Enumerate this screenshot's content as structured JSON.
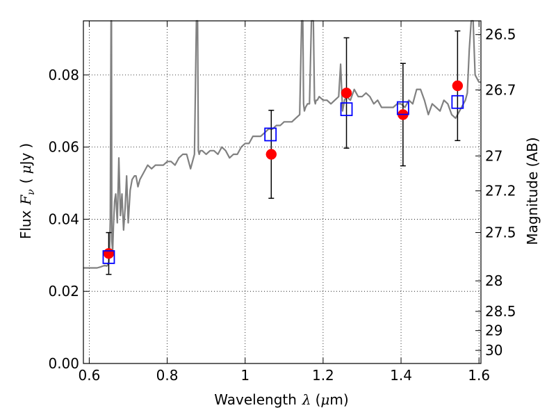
{
  "chart_data": {
    "type": "scatter",
    "xlabel_parts": {
      "prefix": "Wavelength",
      "symbol": "λ",
      "unit_open": "(",
      "unit_mu": "μ",
      "unit_rest": "m)"
    },
    "ylabel_parts": {
      "prefix": "Flux",
      "symbol": "F",
      "subscript": "ν",
      "unit_open": "(",
      "unit_mu": "μ",
      "unit_rest": "Jy",
      "unit_close": ")"
    },
    "y2label": "Magnitude (AB)",
    "xlim": [
      0.585,
      1.605
    ],
    "ylim": [
      0.0,
      0.095
    ],
    "xticks": [
      {
        "value": 0.6,
        "label": "0.6"
      },
      {
        "value": 0.8,
        "label": "0.8"
      },
      {
        "value": 1.0,
        "label": "1"
      },
      {
        "value": 1.2,
        "label": "1.2"
      },
      {
        "value": 1.4,
        "label": "1.4"
      },
      {
        "value": 1.6,
        "label": "1.6"
      }
    ],
    "yticks": [
      {
        "value": 0.0,
        "label": "0.00"
      },
      {
        "value": 0.02,
        "label": "0.02"
      },
      {
        "value": 0.04,
        "label": "0.04"
      },
      {
        "value": 0.06,
        "label": "0.06"
      },
      {
        "value": 0.08,
        "label": "0.08"
      }
    ],
    "y2ticks": [
      {
        "mag": 26.5,
        "label": "26.5"
      },
      {
        "mag": 26.7,
        "label": "26.7"
      },
      {
        "mag": 27.0,
        "label": "27"
      },
      {
        "mag": 27.2,
        "label": "27.2"
      },
      {
        "mag": 27.5,
        "label": "27.5"
      },
      {
        "mag": 28.0,
        "label": "28"
      },
      {
        "mag": 28.5,
        "label": "28.5"
      },
      {
        "mag": 29.0,
        "label": "29"
      },
      {
        "mag": 30.0,
        "label": "30"
      }
    ],
    "grid": true,
    "series": [
      {
        "kind": "line",
        "color": "#808080",
        "x": [
          0.585,
          0.6,
          0.62,
          0.63,
          0.64,
          0.645,
          0.648,
          0.65,
          0.652,
          0.654,
          0.656,
          0.657,
          0.658,
          0.66,
          0.662,
          0.665,
          0.668,
          0.672,
          0.676,
          0.68,
          0.684,
          0.688,
          0.692,
          0.696,
          0.7,
          0.705,
          0.71,
          0.716,
          0.72,
          0.725,
          0.73,
          0.74,
          0.75,
          0.76,
          0.77,
          0.78,
          0.79,
          0.8,
          0.81,
          0.82,
          0.83,
          0.84,
          0.85,
          0.86,
          0.87,
          0.875,
          0.878,
          0.88,
          0.882,
          0.885,
          0.89,
          0.9,
          0.91,
          0.92,
          0.93,
          0.94,
          0.95,
          0.96,
          0.97,
          0.98,
          0.99,
          1.0,
          1.01,
          1.02,
          1.03,
          1.04,
          1.05,
          1.06,
          1.07,
          1.08,
          1.09,
          1.1,
          1.11,
          1.12,
          1.13,
          1.14,
          1.145,
          1.148,
          1.15,
          1.152,
          1.155,
          1.16,
          1.165,
          1.17,
          1.175,
          1.178,
          1.18,
          1.182,
          1.185,
          1.19,
          1.2,
          1.21,
          1.22,
          1.23,
          1.24,
          1.245,
          1.25,
          1.255,
          1.26,
          1.27,
          1.28,
          1.29,
          1.3,
          1.31,
          1.32,
          1.33,
          1.34,
          1.35,
          1.36,
          1.37,
          1.38,
          1.39,
          1.4,
          1.41,
          1.42,
          1.43,
          1.44,
          1.45,
          1.46,
          1.47,
          1.48,
          1.49,
          1.5,
          1.51,
          1.52,
          1.53,
          1.54,
          1.55,
          1.56,
          1.565,
          1.57,
          1.575,
          1.58,
          1.585,
          1.59,
          1.6,
          1.605
        ],
        "y": [
          0.0265,
          0.0265,
          0.0265,
          0.0268,
          0.0272,
          0.027,
          0.0275,
          0.028,
          0.031,
          0.04,
          0.095,
          0.095,
          0.034,
          0.031,
          0.038,
          0.045,
          0.047,
          0.039,
          0.057,
          0.041,
          0.047,
          0.037,
          0.043,
          0.052,
          0.039,
          0.048,
          0.051,
          0.052,
          0.052,
          0.049,
          0.051,
          0.053,
          0.055,
          0.054,
          0.055,
          0.055,
          0.055,
          0.056,
          0.056,
          0.055,
          0.057,
          0.058,
          0.058,
          0.054,
          0.058,
          0.095,
          0.095,
          0.059,
          0.058,
          0.059,
          0.059,
          0.058,
          0.059,
          0.059,
          0.058,
          0.06,
          0.059,
          0.057,
          0.058,
          0.058,
          0.06,
          0.061,
          0.061,
          0.063,
          0.063,
          0.063,
          0.064,
          0.065,
          0.065,
          0.066,
          0.066,
          0.067,
          0.067,
          0.067,
          0.068,
          0.069,
          0.095,
          0.095,
          0.072,
          0.07,
          0.071,
          0.072,
          0.072,
          0.095,
          0.095,
          0.073,
          0.072,
          0.073,
          0.073,
          0.074,
          0.073,
          0.073,
          0.072,
          0.073,
          0.074,
          0.083,
          0.07,
          0.073,
          0.074,
          0.073,
          0.076,
          0.074,
          0.074,
          0.075,
          0.074,
          0.072,
          0.073,
          0.071,
          0.071,
          0.071,
          0.071,
          0.072,
          0.072,
          0.071,
          0.073,
          0.072,
          0.076,
          0.076,
          0.073,
          0.069,
          0.072,
          0.071,
          0.07,
          0.073,
          0.072,
          0.069,
          0.068,
          0.07,
          0.072,
          0.073,
          0.075,
          0.087,
          0.095,
          0.095,
          0.08,
          0.078,
          0.078
        ]
      },
      {
        "kind": "points",
        "marker": "circle",
        "color": "#ff0000",
        "x": [
          0.65,
          1.067,
          1.26,
          1.405,
          1.545
        ],
        "y": [
          0.0305,
          0.058,
          0.075,
          0.069,
          0.077
        ],
        "yerr": [
          0.0058,
          0.0122,
          0.0153,
          0.0142,
          0.0152
        ]
      },
      {
        "kind": "points",
        "marker": "square",
        "color": "#0000ff",
        "x": [
          0.65,
          1.065,
          1.26,
          1.405,
          1.545
        ],
        "y": [
          0.0295,
          0.0635,
          0.0705,
          0.0708,
          0.0725
        ]
      }
    ]
  }
}
